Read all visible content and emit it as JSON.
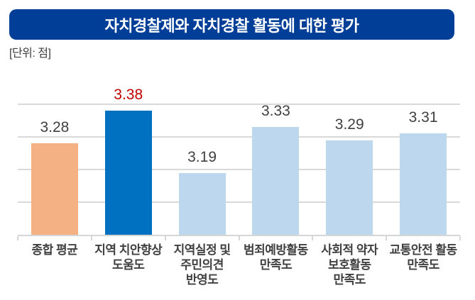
{
  "header": {
    "title": "자치경찰제와 자치경찰 활동에 대한 평가",
    "unit_label": "[단위: 점]"
  },
  "colors": {
    "banner_bg": "#003E97",
    "banner_text": "#ffffff",
    "gridline": "#D9D9D9",
    "axis": "#D6D6D6",
    "text": "#404040",
    "highlight_value": "#C00000",
    "bar_orange": "#F4B183",
    "bar_dark_blue": "#0070C0",
    "bar_light_blue": "#BDD7EE"
  },
  "chart_data": {
    "type": "bar",
    "title": "자치경찰제와 자치경찰 활동에 대한 평가",
    "unit_label": "[단위: 점]",
    "categories": [
      [
        "종합 평균"
      ],
      [
        "지역 치안향상",
        "도움도"
      ],
      [
        "지역실정 및",
        "주민의견",
        "반영도"
      ],
      [
        "범죄예방활동",
        "만족도"
      ],
      [
        "사회적 약자",
        "보호활동",
        "만족도"
      ],
      [
        "교통안전 활동",
        "만족도"
      ]
    ],
    "values": [
      3.28,
      3.38,
      3.19,
      3.33,
      3.29,
      3.31
    ],
    "value_labels": [
      "3.28",
      "3.38",
      "3.19",
      "3.33",
      "3.29",
      "3.31"
    ],
    "bar_colors": [
      "#F4B183",
      "#0070C0",
      "#BDD7EE",
      "#BDD7EE",
      "#BDD7EE",
      "#BDD7EE"
    ],
    "value_label_colors": [
      "#404040",
      "#C00000",
      "#404040",
      "#404040",
      "#404040",
      "#404040"
    ],
    "highlighted_index": 1,
    "xlabel": "",
    "ylabel": "",
    "ylim": [
      3.0,
      3.45
    ],
    "gridlines": [
      3.1,
      3.2,
      3.3,
      3.4
    ],
    "grid": true,
    "legend": "none"
  }
}
